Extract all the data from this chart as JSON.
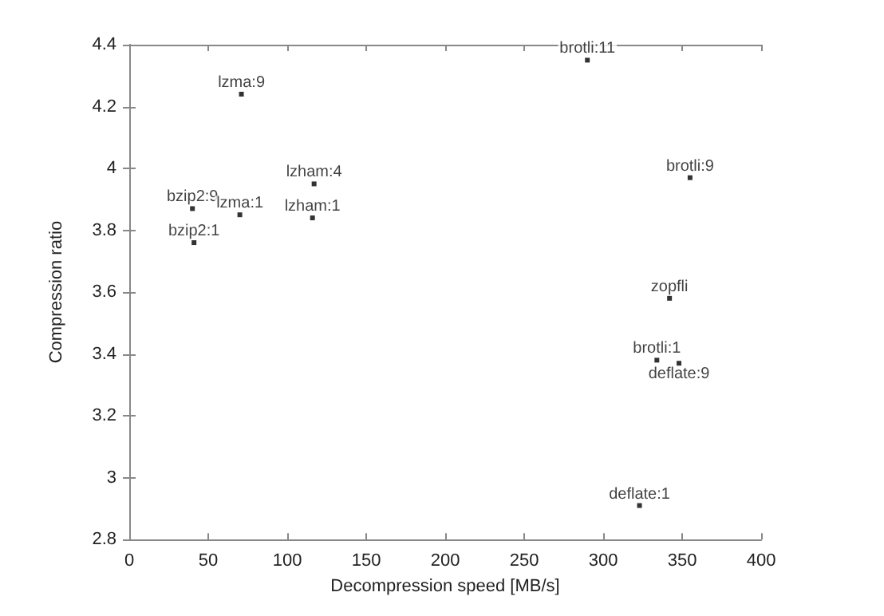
{
  "chart_data": {
    "type": "scatter",
    "xlabel": "Decompression speed [MB/s]",
    "ylabel": "Compression ratio",
    "x": [
      71,
      117,
      40,
      70,
      116,
      41,
      290,
      355,
      342,
      334,
      348,
      323
    ],
    "values": [
      4.24,
      3.95,
      3.87,
      3.85,
      3.84,
      3.76,
      4.35,
      3.97,
      3.58,
      3.38,
      3.37,
      2.91
    ],
    "color": "#000000",
    "marker": "square",
    "annotations": [
      {
        "text": "lzma:9",
        "x": 71,
        "y": 4.24
      },
      {
        "text": "lzham:4",
        "x": 117,
        "y": 3.95
      },
      {
        "text": "bzip2:9",
        "x": 40,
        "y": 3.87
      },
      {
        "text": "lzma:1",
        "x": 70,
        "y": 3.85
      },
      {
        "text": "lzham:1",
        "x": 116,
        "y": 3.84
      },
      {
        "text": "bzip2:1",
        "x": 41,
        "y": 3.76
      },
      {
        "text": "brotli:11",
        "x": 290,
        "y": 4.35
      },
      {
        "text": "brotli:9",
        "x": 355,
        "y": 3.97
      },
      {
        "text": "zopfli",
        "x": 342,
        "y": 3.58
      },
      {
        "text": "brotli:1",
        "x": 334,
        "y": 3.38
      },
      {
        "text": "deflate:9",
        "x": 348,
        "y": 3.37
      },
      {
        "text": "deflate:1",
        "x": 323,
        "y": 2.91
      }
    ],
    "xlim": [
      0,
      400
    ],
    "xticks": [
      0,
      50,
      100,
      150,
      200,
      250,
      300,
      350,
      400
    ],
    "ylim": [
      2.8,
      4.4
    ],
    "yticks": [
      2.8,
      3,
      3.2,
      3.4,
      3.6,
      3.8,
      4,
      4.2,
      4.4
    ],
    "grid": false
  }
}
